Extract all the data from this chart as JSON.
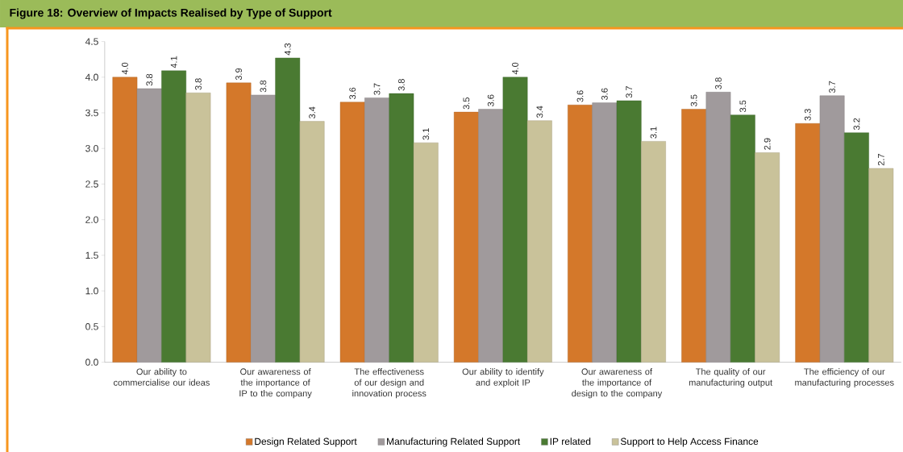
{
  "chart_data": {
    "type": "bar",
    "title": "Figure 18: Overview of Impacts Realised by Type of Support",
    "categories": [
      "Our ability to commercialise our ideas",
      "Our awareness of the importance of IP to the company",
      "The effectiveness of our design and innovation process",
      "Our ability to identify and exploit IP",
      "Our awareness of the importance of design to the company",
      "The quality of our manufacturing output",
      "The efficiency of our manufacturing processes"
    ],
    "series": [
      {
        "name": "Design Related Support",
        "color": "#d4782a",
        "values": [
          4.0,
          3.92,
          3.65,
          3.51,
          3.61,
          3.55,
          3.35
        ],
        "value_labels": [
          "4.0",
          "3.9",
          "3.6",
          "3.5",
          "3.6",
          "3.5",
          "3.3"
        ]
      },
      {
        "name": "Manufacturing Related Support",
        "color": "#a09a9c",
        "values": [
          3.84,
          3.75,
          3.71,
          3.55,
          3.64,
          3.79,
          3.74
        ],
        "value_labels": [
          "3.8",
          "3.8",
          "3.7",
          "3.6",
          "3.6",
          "3.8",
          "3.7"
        ]
      },
      {
        "name": "IP related",
        "color": "#4a7a32",
        "values": [
          4.09,
          4.27,
          3.77,
          4.0,
          3.67,
          3.47,
          3.22
        ],
        "value_labels": [
          "4.1",
          "4.3",
          "3.8",
          "4.0",
          "3.7",
          "3.5",
          "3.2"
        ]
      },
      {
        "name": "Support to Help Access Finance",
        "color": "#c9c29a",
        "values": [
          3.78,
          3.38,
          3.08,
          3.39,
          3.1,
          2.94,
          2.72
        ],
        "value_labels": [
          "3.8",
          "3.4",
          "3.1",
          "3.4",
          "3.1",
          "2.9",
          "2.7"
        ]
      }
    ],
    "ylim": [
      0,
      4.5
    ],
    "yticks": [
      {
        "value": 0,
        "label": "0.0"
      },
      {
        "value": 0.5,
        "label": "0.5"
      },
      {
        "value": 1,
        "label": "1.0"
      },
      {
        "value": 1.5,
        "label": "1.5"
      },
      {
        "value": 2,
        "label": "2.0"
      },
      {
        "value": 2.5,
        "label": "2.5"
      },
      {
        "value": 3,
        "label": "3.0"
      },
      {
        "value": 3.5,
        "label": "3.5"
      },
      {
        "value": 4,
        "label": "4.0"
      },
      {
        "value": 4.5,
        "label": "4.5"
      }
    ],
    "legend": "bottom"
  }
}
